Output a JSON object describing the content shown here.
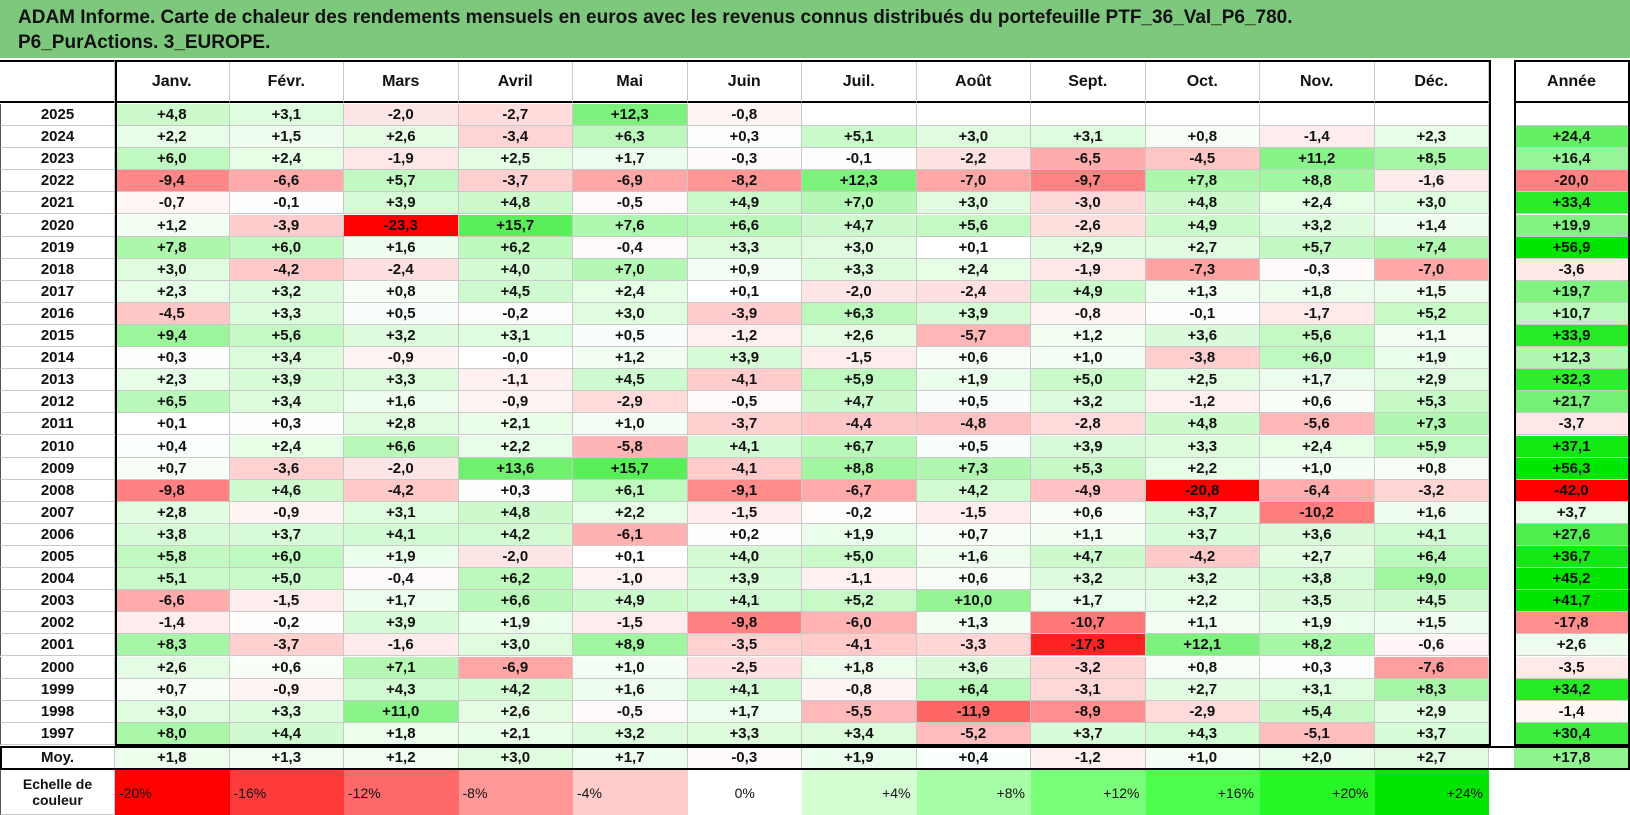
{
  "title_line1": "ADAM Informe. Carte de chaleur des rendements mensuels en euros avec les revenus connus distribués du portefeuille PTF_36_Val_P6_780.",
  "title_line2": "P6_PurActions. 3_EUROPE.",
  "chart_data": {
    "type": "heatmap",
    "corner_label": "",
    "columns": [
      "Janv.",
      "Févr.",
      "Mars",
      "Avril",
      "Mai",
      "Juin",
      "Juil.",
      "Août",
      "Sept.",
      "Oct.",
      "Nov.",
      "Déc."
    ],
    "annual_label": "Année",
    "rows": [
      {
        "year": "2025",
        "values": [
          "+4,8",
          "+3,1",
          "-2,0",
          "-2,7",
          "+12,3",
          "-0,8",
          "",
          "",
          "",
          "",
          "",
          ""
        ],
        "annual": ""
      },
      {
        "year": "2024",
        "values": [
          "+2,2",
          "+1,5",
          "+2,6",
          "-3,4",
          "+6,3",
          "+0,3",
          "+5,1",
          "+3,0",
          "+3,1",
          "+0,8",
          "-1,4",
          "+2,3"
        ],
        "annual": "+24,4"
      },
      {
        "year": "2023",
        "values": [
          "+6,0",
          "+2,4",
          "-1,9",
          "+2,5",
          "+1,7",
          "-0,3",
          "-0,1",
          "-2,2",
          "-6,5",
          "-4,5",
          "+11,2",
          "+8,5"
        ],
        "annual": "+16,4"
      },
      {
        "year": "2022",
        "values": [
          "-9,4",
          "-6,6",
          "+5,7",
          "-3,7",
          "-6,9",
          "-8,2",
          "+12,3",
          "-7,0",
          "-9,7",
          "+7,8",
          "+8,8",
          "-1,6"
        ],
        "annual": "-20,0"
      },
      {
        "year": "2021",
        "values": [
          "-0,7",
          "-0,1",
          "+3,9",
          "+4,8",
          "-0,5",
          "+4,9",
          "+7,0",
          "+3,0",
          "-3,0",
          "+4,8",
          "+2,4",
          "+3,0"
        ],
        "annual": "+33,4"
      },
      {
        "year": "2020",
        "values": [
          "+1,2",
          "-3,9",
          "-23,3",
          "+15,7",
          "+7,6",
          "+6,6",
          "+4,7",
          "+5,6",
          "-2,6",
          "+4,9",
          "+3,2",
          "+1,4"
        ],
        "annual": "+19,9"
      },
      {
        "year": "2019",
        "values": [
          "+7,8",
          "+6,0",
          "+1,6",
          "+6,2",
          "-0,4",
          "+3,3",
          "+3,0",
          "+0,1",
          "+2,9",
          "+2,7",
          "+5,7",
          "+7,4"
        ],
        "annual": "+56,9"
      },
      {
        "year": "2018",
        "values": [
          "+3,0",
          "-4,2",
          "-2,4",
          "+4,0",
          "+7,0",
          "+0,9",
          "+3,3",
          "+2,4",
          "-1,9",
          "-7,3",
          "-0,3",
          "-7,0"
        ],
        "annual": "-3,6"
      },
      {
        "year": "2017",
        "values": [
          "+2,3",
          "+3,2",
          "+0,8",
          "+4,5",
          "+2,4",
          "+0,1",
          "-2,0",
          "-2,4",
          "+4,9",
          "+1,3",
          "+1,8",
          "+1,5"
        ],
        "annual": "+19,7"
      },
      {
        "year": "2016",
        "values": [
          "-4,5",
          "+3,3",
          "+0,5",
          "-0,2",
          "+3,0",
          "-3,9",
          "+6,3",
          "+3,9",
          "-0,8",
          "-0,1",
          "-1,7",
          "+5,2"
        ],
        "annual": "+10,7"
      },
      {
        "year": "2015",
        "values": [
          "+9,4",
          "+5,6",
          "+3,2",
          "+3,1",
          "+0,5",
          "-1,2",
          "+2,6",
          "-5,7",
          "+1,2",
          "+3,6",
          "+5,6",
          "+1,1"
        ],
        "annual": "+33,9"
      },
      {
        "year": "2014",
        "values": [
          "+0,3",
          "+3,4",
          "-0,9",
          "-0,0",
          "+1,2",
          "+3,9",
          "-1,5",
          "+0,6",
          "+1,0",
          "-3,8",
          "+6,0",
          "+1,9"
        ],
        "annual": "+12,3"
      },
      {
        "year": "2013",
        "values": [
          "+2,3",
          "+3,9",
          "+3,3",
          "-1,1",
          "+4,5",
          "-4,1",
          "+5,9",
          "+1,9",
          "+5,0",
          "+2,5",
          "+1,7",
          "+2,9"
        ],
        "annual": "+32,3"
      },
      {
        "year": "2012",
        "values": [
          "+6,5",
          "+3,4",
          "+1,6",
          "-0,9",
          "-2,9",
          "-0,5",
          "+4,7",
          "+0,5",
          "+3,2",
          "-1,2",
          "+0,6",
          "+5,3"
        ],
        "annual": "+21,7"
      },
      {
        "year": "2011",
        "values": [
          "+0,1",
          "+0,3",
          "+2,8",
          "+2,1",
          "+1,0",
          "-3,7",
          "-4,4",
          "-4,8",
          "-2,8",
          "+4,8",
          "-5,6",
          "+7,3"
        ],
        "annual": "-3,7"
      },
      {
        "year": "2010",
        "values": [
          "+0,4",
          "+2,4",
          "+6,6",
          "+2,2",
          "-5,8",
          "+4,1",
          "+6,7",
          "+0,5",
          "+3,9",
          "+3,3",
          "+2,4",
          "+5,9"
        ],
        "annual": "+37,1"
      },
      {
        "year": "2009",
        "values": [
          "+0,7",
          "-3,6",
          "-2,0",
          "+13,6",
          "+15,7",
          "-4,1",
          "+8,8",
          "+7,3",
          "+5,3",
          "+2,2",
          "+1,0",
          "+0,8"
        ],
        "annual": "+56,3"
      },
      {
        "year": "2008",
        "values": [
          "-9,8",
          "+4,6",
          "-4,2",
          "+0,3",
          "+6,1",
          "-9,1",
          "-6,7",
          "+4,2",
          "-4,9",
          "-20,8",
          "-6,4",
          "-3,2"
        ],
        "annual": "-42,0"
      },
      {
        "year": "2007",
        "values": [
          "+2,8",
          "-0,9",
          "+3,1",
          "+4,8",
          "+2,2",
          "-1,5",
          "-0,2",
          "-1,5",
          "+0,6",
          "+3,7",
          "-10,2",
          "+1,6"
        ],
        "annual": "+3,7"
      },
      {
        "year": "2006",
        "values": [
          "+3,8",
          "+3,7",
          "+4,1",
          "+4,2",
          "-6,1",
          "+0,2",
          "+1,9",
          "+0,7",
          "+1,1",
          "+3,7",
          "+3,6",
          "+4,1"
        ],
        "annual": "+27,6"
      },
      {
        "year": "2005",
        "values": [
          "+5,8",
          "+6,0",
          "+1,9",
          "-2,0",
          "+0,1",
          "+4,0",
          "+5,0",
          "+1,6",
          "+4,7",
          "-4,2",
          "+2,7",
          "+6,4"
        ],
        "annual": "+36,7"
      },
      {
        "year": "2004",
        "values": [
          "+5,1",
          "+5,0",
          "-0,4",
          "+6,2",
          "-1,0",
          "+3,9",
          "-1,1",
          "+0,6",
          "+3,2",
          "+3,2",
          "+3,8",
          "+9,0"
        ],
        "annual": "+45,2"
      },
      {
        "year": "2003",
        "values": [
          "-6,6",
          "-1,5",
          "+1,7",
          "+6,6",
          "+4,9",
          "+4,1",
          "+5,2",
          "+10,0",
          "+1,7",
          "+2,2",
          "+3,5",
          "+4,5"
        ],
        "annual": "+41,7"
      },
      {
        "year": "2002",
        "values": [
          "-1,4",
          "-0,2",
          "+3,9",
          "+1,9",
          "-1,5",
          "-9,8",
          "-6,0",
          "+1,3",
          "-10,7",
          "+1,1",
          "+1,9",
          "+1,5"
        ],
        "annual": "-17,8"
      },
      {
        "year": "2001",
        "values": [
          "+8,3",
          "-3,7",
          "-1,6",
          "+3,0",
          "+8,9",
          "-3,5",
          "-4,1",
          "-3,3",
          "-17,3",
          "+12,1",
          "+8,2",
          "-0,6"
        ],
        "annual": "+2,6"
      },
      {
        "year": "2000",
        "values": [
          "+2,6",
          "+0,6",
          "+7,1",
          "-6,9",
          "+1,0",
          "-2,5",
          "+1,8",
          "+3,6",
          "-3,2",
          "+0,8",
          "+0,3",
          "-7,6"
        ],
        "annual": "-3,5"
      },
      {
        "year": "1999",
        "values": [
          "+0,7",
          "-0,9",
          "+4,3",
          "+4,2",
          "+1,6",
          "+4,1",
          "-0,8",
          "+6,4",
          "-3,1",
          "+2,7",
          "+3,1",
          "+8,3"
        ],
        "annual": "+34,2"
      },
      {
        "year": "1998",
        "values": [
          "+3,0",
          "+3,3",
          "+11,0",
          "+2,6",
          "-0,5",
          "+1,7",
          "-5,5",
          "-11,9",
          "-8,9",
          "-2,9",
          "+5,4",
          "+2,9"
        ],
        "annual": "-1,4"
      },
      {
        "year": "1997",
        "values": [
          "+8,0",
          "+4,4",
          "+1,8",
          "+2,1",
          "+3,2",
          "+3,3",
          "+3,4",
          "-5,2",
          "+3,7",
          "+4,3",
          "-5,1",
          "+3,7"
        ],
        "annual": "+30,4"
      }
    ],
    "average": {
      "label": "Moy.",
      "values": [
        "+1,8",
        "+1,3",
        "+1,2",
        "+3,0",
        "+1,7",
        "-0,3",
        "+1,9",
        "+0,4",
        "-1,2",
        "+1,0",
        "+2,0",
        "+2,7"
      ],
      "annual": "+17,8"
    },
    "scale": {
      "label": "Echelle de couleur",
      "steps": [
        {
          "text": "-20%",
          "value": -20,
          "color": "#ff0000"
        },
        {
          "text": "-16%",
          "value": -16,
          "color": "#ff3b3b"
        },
        {
          "text": "-12%",
          "value": -12,
          "color": "#ff6969"
        },
        {
          "text": "-8%",
          "value": -8,
          "color": "#ff9999"
        },
        {
          "text": "-4%",
          "value": -4,
          "color": "#ffcccc"
        },
        {
          "text": "0%",
          "value": 0,
          "color": "#ffffff"
        },
        {
          "text": "+4%",
          "value": 4,
          "color": "#d3ffd3"
        },
        {
          "text": "+8%",
          "value": 8,
          "color": "#a6ffa6"
        },
        {
          "text": "+12%",
          "value": 12,
          "color": "#79ff79"
        },
        {
          "text": "+16%",
          "value": 16,
          "color": "#4dff4d"
        },
        {
          "text": "+20%",
          "value": 20,
          "color": "#26f526"
        },
        {
          "text": "+24%",
          "value": 24,
          "color": "#00e600"
        }
      ],
      "annual_scale_text": ""
    },
    "monthly_color_range": [
      -20,
      24
    ],
    "annual_color_range": [
      -40,
      40
    ]
  }
}
